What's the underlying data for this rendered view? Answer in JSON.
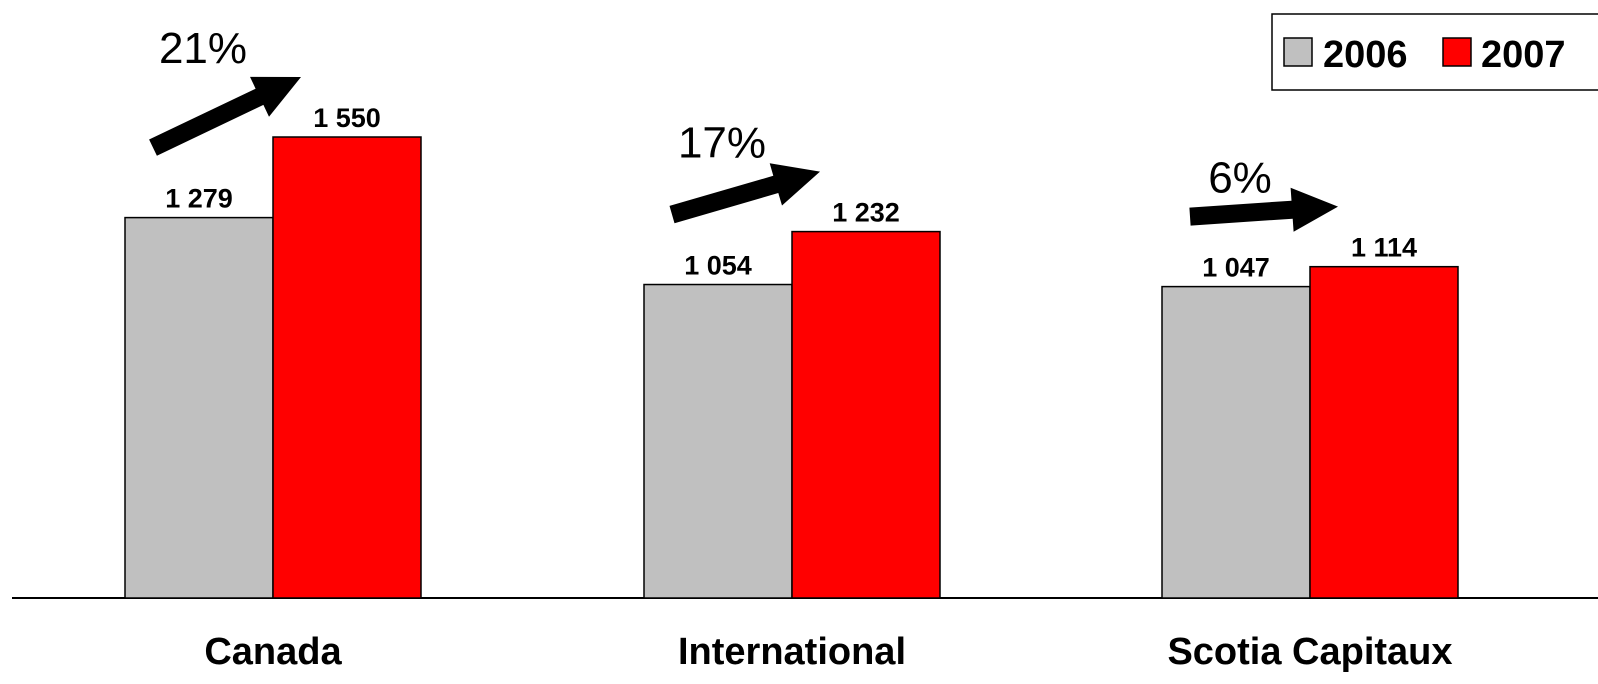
{
  "chart_data": {
    "type": "bar",
    "categories": [
      "Canada",
      "International",
      "Scotia Capitaux"
    ],
    "series": [
      {
        "name": "2006",
        "values": [
          1279,
          1054,
          1047
        ],
        "labels": [
          "1 279",
          "1 054",
          "1 047"
        ],
        "color": "#C0C0C0"
      },
      {
        "name": "2007",
        "values": [
          1550,
          1232,
          1114
        ],
        "labels": [
          "1 550",
          "1 232",
          "1 114"
        ],
        "color": "#FF0000"
      }
    ],
    "growth_labels": [
      "21%",
      "17%",
      "6%"
    ],
    "title": "",
    "xlabel": "",
    "ylabel": "",
    "ylim": [
      0,
      1550
    ],
    "grid": false,
    "legend": "top-right"
  }
}
